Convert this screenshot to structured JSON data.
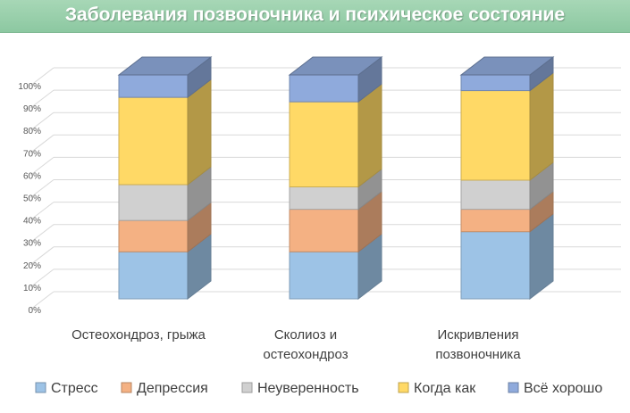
{
  "chart_data": {
    "type": "bar",
    "stacked": true,
    "percent": true,
    "three_d": true,
    "title": "Заболевания позвоночника и психическое состояние",
    "categories": [
      [
        "Остеохондроз, грыжа"
      ],
      [
        "Сколиоз и",
        "остеохондроз"
      ],
      [
        "Искривления",
        "позвоночника"
      ]
    ],
    "series": [
      {
        "name": "Стресс",
        "color": "#9dc3e6",
        "values": [
          21,
          21,
          30
        ]
      },
      {
        "name": "Депрессия",
        "color": "#f4b183",
        "values": [
          14,
          19,
          10
        ]
      },
      {
        "name": "Неуверенность",
        "color": "#d0d0d0",
        "values": [
          16,
          10,
          13
        ]
      },
      {
        "name": "Когда как",
        "color": "#ffd966",
        "values": [
          39,
          38,
          40
        ]
      },
      {
        "name": "Всё хорошо",
        "color": "#8faadc",
        "values": [
          10,
          12,
          7
        ]
      }
    ],
    "yticks": [
      "0%",
      "10%",
      "20%",
      "30%",
      "40%",
      "50%",
      "60%",
      "70%",
      "80%",
      "90%",
      "100%"
    ],
    "ylim": [
      0,
      100
    ],
    "grid": true,
    "legend": "bottom"
  }
}
